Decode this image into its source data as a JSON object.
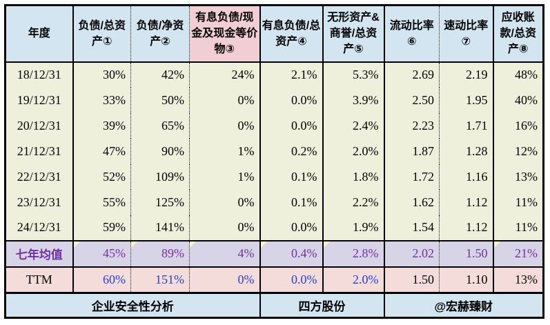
{
  "chart_data": {
    "type": "table",
    "title": "企业安全性分析",
    "company": "四方股份",
    "credit": "@宏赫臻财",
    "columns": [
      "年度",
      "负债/总资产①",
      "负债/净资产②",
      "有息负债/现金及现金等价物③",
      "有息负债/总资产④",
      "无形资产&商誉/总资产⑤",
      "流动比率⑥",
      "速动比率⑦",
      "应收账款/总资产⑧"
    ],
    "rows": [
      {
        "year": "18/12/31",
        "values": [
          "30%",
          "42%",
          "24%",
          "2.1%",
          "5.3%",
          "2.69",
          "2.19",
          "48%"
        ]
      },
      {
        "year": "19/12/31",
        "values": [
          "33%",
          "50%",
          "0%",
          "0.0%",
          "3.9%",
          "2.50",
          "1.95",
          "40%"
        ]
      },
      {
        "year": "20/12/31",
        "values": [
          "39%",
          "65%",
          "0%",
          "0.0%",
          "2.4%",
          "2.23",
          "1.71",
          "16%"
        ]
      },
      {
        "year": "21/12/31",
        "values": [
          "47%",
          "90%",
          "1%",
          "0.2%",
          "2.0%",
          "1.87",
          "1.28",
          "12%"
        ]
      },
      {
        "year": "22/12/31",
        "values": [
          "52%",
          "109%",
          "1%",
          "0.1%",
          "1.8%",
          "1.72",
          "1.16",
          "13%"
        ]
      },
      {
        "year": "23/12/31",
        "values": [
          "55%",
          "125%",
          "0%",
          "0.1%",
          "2.2%",
          "1.62",
          "1.12",
          "11%"
        ]
      },
      {
        "year": "24/12/31",
        "values": [
          "59%",
          "141%",
          "0%",
          "0.0%",
          "1.9%",
          "1.54",
          "1.12",
          "11%"
        ]
      }
    ],
    "summary_rows": [
      {
        "label": "七年均值",
        "style": "average",
        "values": [
          "45%",
          "89%",
          "4%",
          "0.4%",
          "2.8%",
          "2.02",
          "1.50",
          "21%"
        ],
        "flag_cells": [
          0,
          1,
          2,
          3,
          4,
          7
        ]
      },
      {
        "label": "TTM",
        "style": "ttm",
        "values": [
          "60%",
          "151%",
          "0%",
          "0.0%",
          "2.0%",
          "1.50",
          "1.10",
          "13%"
        ],
        "flag_cells": []
      }
    ],
    "footer": {
      "title": "企业安全性分析",
      "company": "四方股份",
      "credit": "@宏赫臻财"
    }
  },
  "colors": {
    "header_bg": "#d2e5f1",
    "header_highlight_bg": "#f1ced3",
    "data_bg": "#eef0dc",
    "average_bg": "#d8d4e8",
    "ttm_bg": "#f3dcda",
    "footer_bg": "#d2e5f1",
    "average_text": "#7030a0",
    "ttm_text": "#2640cc",
    "corner_flag": "#fdf5c0"
  }
}
